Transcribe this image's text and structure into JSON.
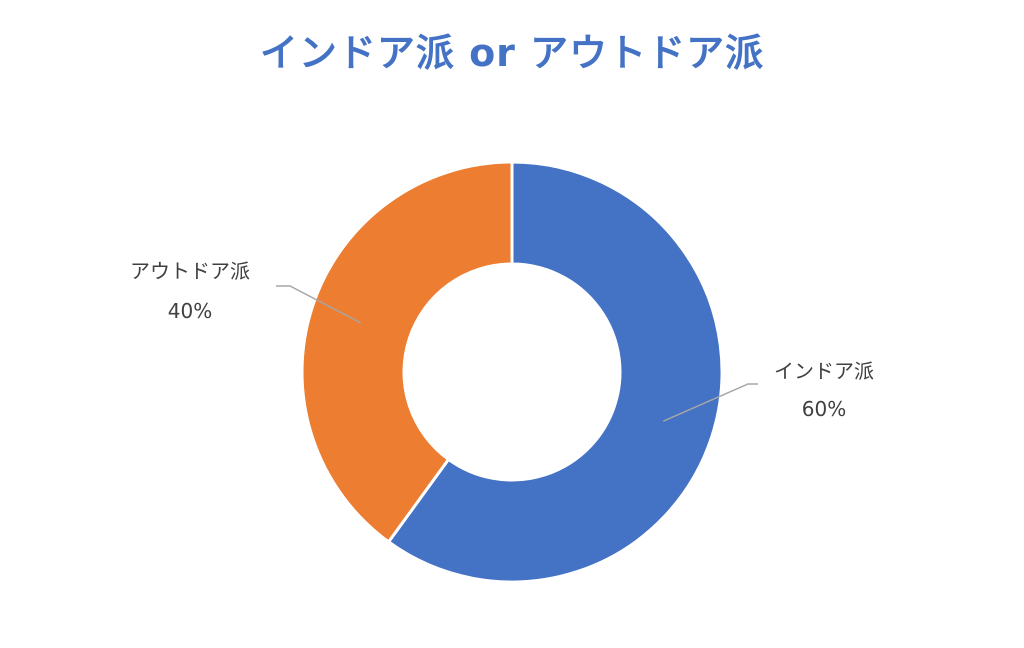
{
  "chart_data": {
    "type": "pie",
    "variant": "donut",
    "title": "インドア派 or アウトドア派",
    "categories": [
      "インドア派",
      "アウトドア派"
    ],
    "values": [
      60,
      40
    ],
    "labels": [
      {
        "name": "インドア派",
        "value_text": "60%"
      },
      {
        "name": "アウトドア派",
        "value_text": "40%"
      }
    ],
    "colors": [
      "#4472C4",
      "#ED7D31"
    ],
    "title_color": "#4472C4",
    "legend": "none"
  }
}
